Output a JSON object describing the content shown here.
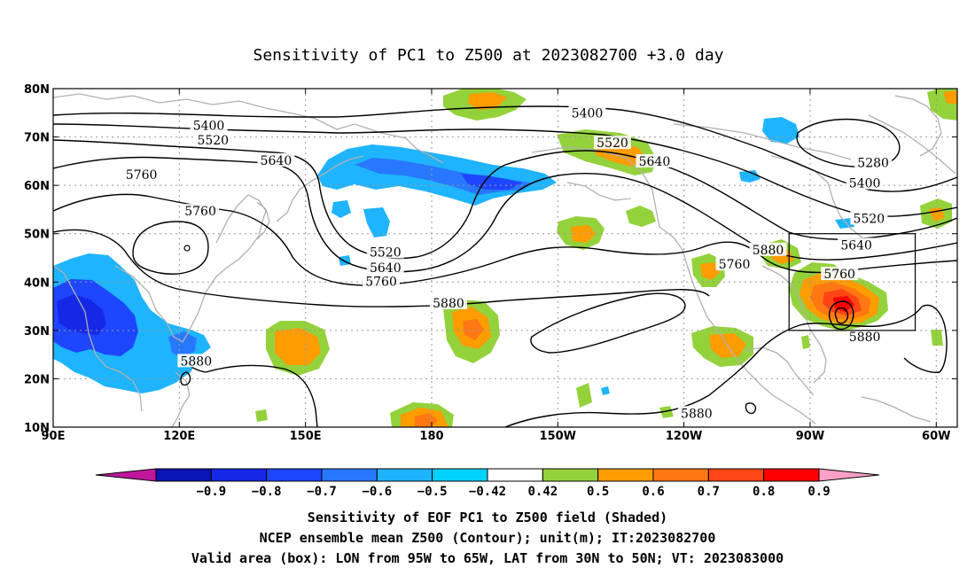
{
  "title": "Sensitivity of PC1 to Z500 at 2023082700 +3.0 day",
  "map": {
    "lon_range": [
      90,
      305
    ],
    "lat_range": [
      10,
      80
    ],
    "x_ticks": [
      {
        "lon": 90,
        "label": "90E"
      },
      {
        "lon": 120,
        "label": "120E"
      },
      {
        "lon": 150,
        "label": "150E"
      },
      {
        "lon": 180,
        "label": "180"
      },
      {
        "lon": 210,
        "label": "150W"
      },
      {
        "lon": 240,
        "label": "120W"
      },
      {
        "lon": 270,
        "label": "90W"
      },
      {
        "lon": 300,
        "label": "60W"
      }
    ],
    "y_ticks": [
      {
        "lat": 80,
        "label": "80N"
      },
      {
        "lat": 70,
        "label": "70N"
      },
      {
        "lat": 60,
        "label": "60N"
      },
      {
        "lat": 50,
        "label": "50N"
      },
      {
        "lat": 40,
        "label": "40N"
      },
      {
        "lat": 30,
        "label": "30N"
      },
      {
        "lat": 20,
        "label": "20N"
      },
      {
        "lat": 10,
        "label": "10N"
      }
    ],
    "grid": true,
    "valid_box": {
      "lon": [
        265,
        295
      ],
      "lat": [
        30,
        50
      ]
    }
  },
  "contour_labels": [
    {
      "text": "5400",
      "lon": 127,
      "lat": 72.2
    },
    {
      "text": "5520",
      "lon": 128,
      "lat": 69.2
    },
    {
      "text": "5640",
      "lon": 143,
      "lat": 65
    },
    {
      "text": "5760",
      "lon": 111,
      "lat": 62
    },
    {
      "text": "5760",
      "lon": 125,
      "lat": 54.5
    },
    {
      "text": "5400",
      "lon": 217,
      "lat": 74.8
    },
    {
      "text": "5520",
      "lon": 223,
      "lat": 68.6
    },
    {
      "text": "5640",
      "lon": 233,
      "lat": 64.8
    },
    {
      "text": "5520",
      "lon": 169,
      "lat": 46
    },
    {
      "text": "5640",
      "lon": 169,
      "lat": 42.8
    },
    {
      "text": "5760",
      "lon": 168,
      "lat": 40
    },
    {
      "text": "5880",
      "lon": 184,
      "lat": 35.5
    },
    {
      "text": "5880",
      "lon": 124,
      "lat": 23.5
    },
    {
      "text": "5760",
      "lon": 252,
      "lat": 43.5
    },
    {
      "text": "5880",
      "lon": 260,
      "lat": 46.5
    },
    {
      "text": "5640",
      "lon": 281,
      "lat": 47.5
    },
    {
      "text": "5760",
      "lon": 277,
      "lat": 41.5
    },
    {
      "text": "5880",
      "lon": 283,
      "lat": 28.5
    },
    {
      "text": "5520",
      "lon": 284,
      "lat": 53
    },
    {
      "text": "5400",
      "lon": 283,
      "lat": 60.3
    },
    {
      "text": "5280",
      "lon": 285,
      "lat": 64.5
    },
    {
      "text": "5880",
      "lon": 243,
      "lat": 12.7
    }
  ],
  "colorbar": {
    "levels": [
      "-0.9",
      "-0.8",
      "-0.7",
      "-0.6",
      "-0.5",
      "-0.42",
      "0.42",
      "0.5",
      "0.6",
      "0.7",
      "0.8",
      "0.9"
    ],
    "colors": [
      "#c0179c",
      "#0a14b4",
      "#1428e6",
      "#1e46ff",
      "#2878ff",
      "#1eb4ff",
      "#00d2ff",
      "#ffffff",
      "#94d23c",
      "#ff9c00",
      "#ff7814",
      "#ff4614",
      "#ff0000",
      "#ffa0c8"
    ]
  },
  "caption": {
    "line1": "Sensitivity of EOF PC1 to Z500 field (Shaded)",
    "line2": "NCEP ensemble mean Z500 (Contour); unit(m); IT:2023082700",
    "line3": "Valid area (box): LON from 95W to 65W, LAT from 30N to 50N; VT: 2023083000"
  }
}
